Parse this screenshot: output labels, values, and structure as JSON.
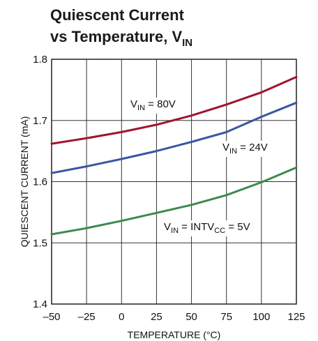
{
  "chart_data": {
    "type": "line",
    "title_line1": "Quiescent Current",
    "title_line2": "vs Temperature, V",
    "title_line2_sub": "IN",
    "xlabel": "TEMPERATURE (°C)",
    "ylabel": "QUIESCENT CURRENT (mA)",
    "xlim": [
      -50,
      125
    ],
    "ylim": [
      1.4,
      1.8
    ],
    "x_ticks": [
      -50,
      -25,
      0,
      25,
      50,
      75,
      100,
      125
    ],
    "x_tick_labels": [
      "–50",
      "–25",
      "0",
      "25",
      "50",
      "75",
      "100",
      "125"
    ],
    "y_ticks": [
      1.4,
      1.5,
      1.6,
      1.7,
      1.8
    ],
    "y_tick_labels": [
      "1.4",
      "1.5",
      "1.6",
      "1.7",
      "1.8"
    ],
    "grid": true,
    "series": [
      {
        "color": "#a0142e",
        "x": [
          -50,
          -25,
          0,
          25,
          50,
          75,
          100,
          125
        ],
        "y": [
          1.662,
          1.671,
          1.681,
          1.693,
          1.708,
          1.726,
          1.746,
          1.771
        ],
        "label_parts": [
          "V",
          "IN",
          " = 80V"
        ]
      },
      {
        "color": "#3a55a3",
        "x": [
          -50,
          -25,
          0,
          25,
          50,
          75,
          100,
          125
        ],
        "y": [
          1.614,
          1.625,
          1.637,
          1.65,
          1.665,
          1.681,
          1.706,
          1.729
        ],
        "label_parts": [
          "V",
          "IN",
          " = 24V"
        ]
      },
      {
        "color": "#3c8a4e",
        "x": [
          -50,
          -25,
          0,
          25,
          50,
          75,
          100,
          125
        ],
        "y": [
          1.514,
          1.524,
          1.536,
          1.549,
          1.562,
          1.578,
          1.599,
          1.623
        ],
        "label_parts": [
          "V",
          "IN",
          " = INTV",
          "CC",
          " = 5V"
        ]
      }
    ]
  }
}
